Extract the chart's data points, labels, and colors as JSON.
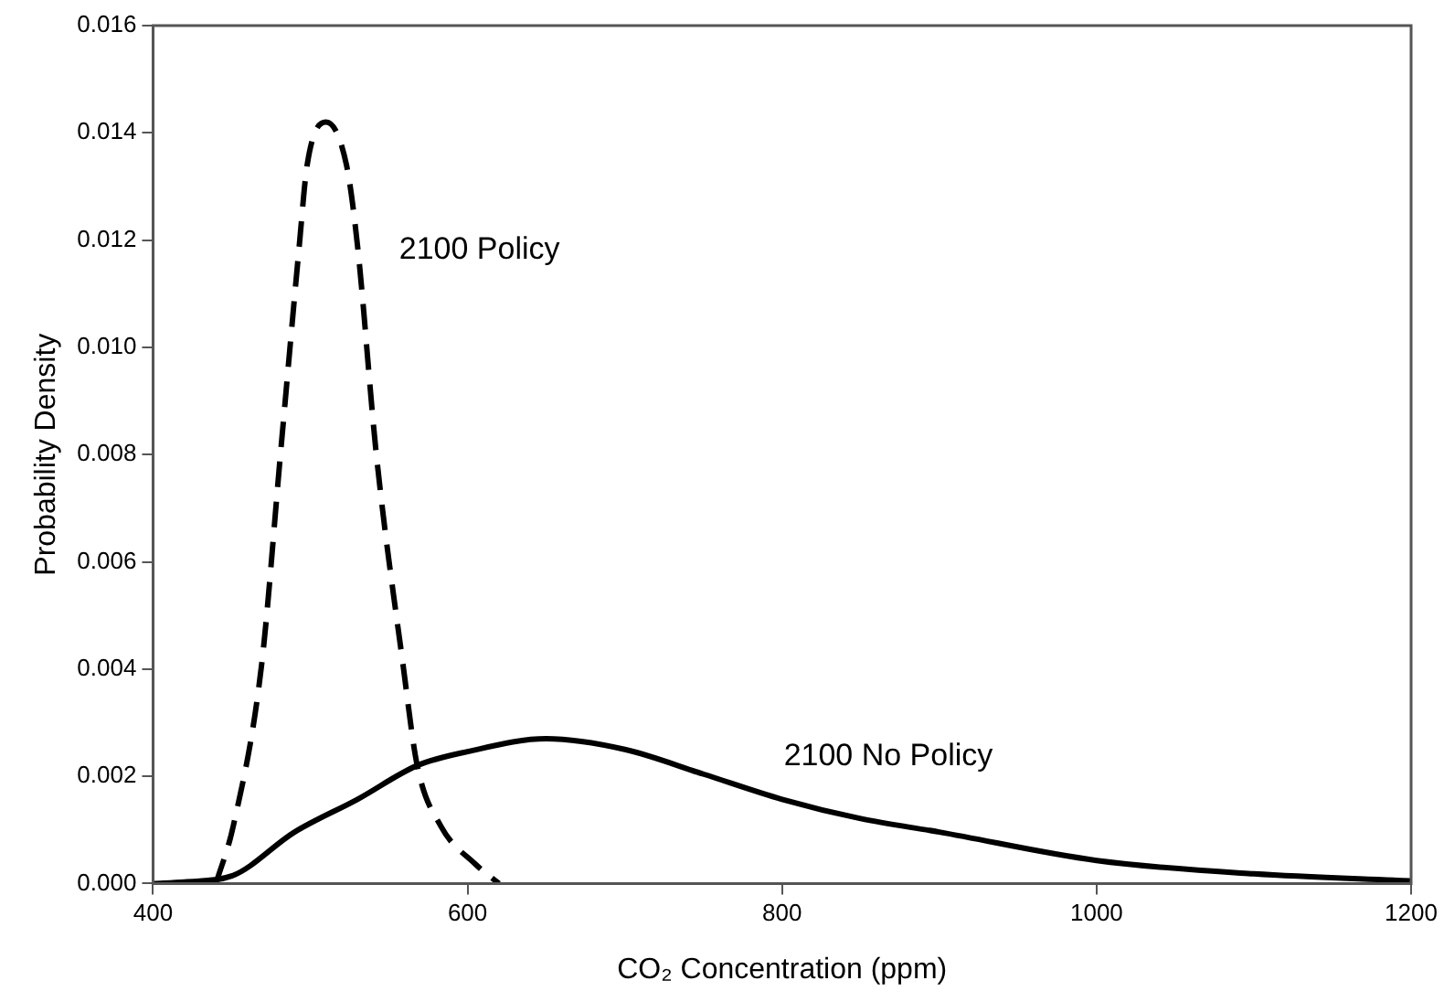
{
  "chart_data": {
    "type": "line",
    "xlabel": "CO₂ Concentration (ppm)",
    "ylabel": "Probability Density",
    "xlim": [
      400,
      1200
    ],
    "xticks": [
      400,
      600,
      800,
      1000,
      1200
    ],
    "ylim": [
      0,
      0.016
    ],
    "yticks": [
      {
        "value": 0,
        "label": "0.000"
      },
      {
        "value": 0.002,
        "label": "0.002"
      },
      {
        "value": 0.004,
        "label": "0.004"
      },
      {
        "value": 0.006,
        "label": "0.006"
      },
      {
        "value": 0.008,
        "label": "0.008"
      },
      {
        "value": 0.01,
        "label": "0.010"
      },
      {
        "value": 0.012,
        "label": "0.012"
      },
      {
        "value": 0.014,
        "label": "0.014"
      },
      {
        "value": 0.016,
        "label": "0.016"
      }
    ],
    "grid": false,
    "legend": false,
    "marker": "none",
    "series": [
      {
        "name": "2100 Policy",
        "color": "#000000",
        "line_style": "dashed",
        "x": [
          440,
          451,
          469,
          481,
          493,
          498,
          510,
          523,
          530,
          542,
          559,
          568,
          583,
          605,
          620
        ],
        "values": [
          0,
          0.00107,
          0.00407,
          0.008,
          0.0119,
          0.0134,
          0.0142,
          0.0134,
          0.0119,
          0.008,
          0.00407,
          0.0022,
          0.00107,
          0.00036,
          0
        ]
      },
      {
        "name": "2100 No Policy",
        "color": "#000000",
        "line_style": "solid",
        "x": [
          400,
          420,
          450,
          490,
          530,
          568,
          600,
          650,
          700,
          750,
          800,
          850,
          900,
          1000,
          1100,
          1200
        ],
        "values": [
          0,
          3e-05,
          0.00014,
          0.00096,
          0.00157,
          0.0022,
          0.00246,
          0.0027,
          0.0025,
          0.00204,
          0.00157,
          0.00121,
          0.00096,
          0.00043,
          0.00018,
          5e-05
        ]
      }
    ]
  }
}
